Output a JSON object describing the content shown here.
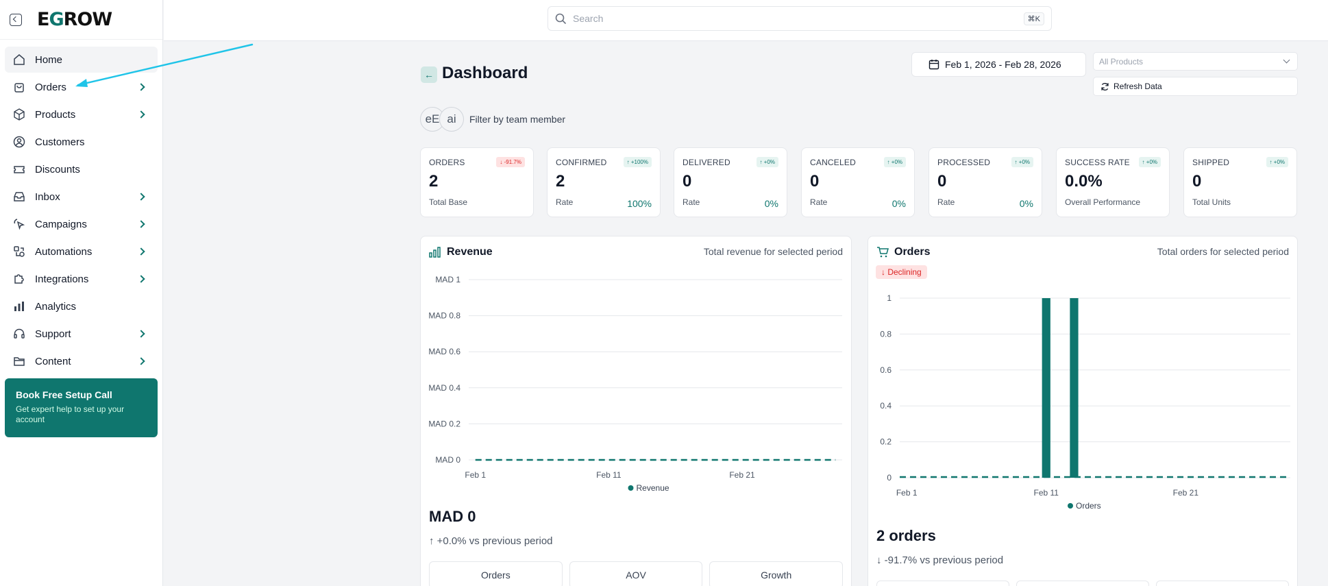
{
  "sidebar": {
    "logo_prefix": "E",
    "logo_accent": "G",
    "logo_suffix": "ROW",
    "items": [
      {
        "label": "Home",
        "icon": "home-icon",
        "chevron": false
      },
      {
        "label": "Orders",
        "icon": "bag-icon",
        "chevron": true
      },
      {
        "label": "Products",
        "icon": "box-icon",
        "chevron": true
      },
      {
        "label": "Customers",
        "icon": "user-circle-icon",
        "chevron": false
      },
      {
        "label": "Discounts",
        "icon": "ticket-icon",
        "chevron": false
      },
      {
        "label": "Inbox",
        "icon": "inbox-icon",
        "chevron": true
      },
      {
        "label": "Campaigns",
        "icon": "pointer-icon",
        "chevron": true
      },
      {
        "label": "Automations",
        "icon": "automation-icon",
        "chevron": true
      },
      {
        "label": "Integrations",
        "icon": "puzzle-icon",
        "chevron": true
      },
      {
        "label": "Analytics",
        "icon": "bar-chart-icon",
        "chevron": false
      },
      {
        "label": "Support",
        "icon": "headset-icon",
        "chevron": true
      },
      {
        "label": "Content",
        "icon": "folder-icon",
        "chevron": true
      }
    ],
    "promo": {
      "title": "Book Free Setup Call",
      "text": "Get expert help to set up your account"
    }
  },
  "search": {
    "placeholder": "Search",
    "shortcut": "⌘K"
  },
  "page": {
    "title": "Dashboard",
    "date_range": "Feb 1, 2026 - Feb 28, 2026",
    "product_filter": "All Products",
    "refresh_label": "Refresh Data",
    "avatars": [
      "eE",
      "ai"
    ],
    "filter_label": "Filter by team member"
  },
  "stats": [
    {
      "name": "ORDERS",
      "badge": "-91.7%",
      "direction": "down",
      "value": "2",
      "sub": "Total Base",
      "pct": ""
    },
    {
      "name": "CONFIRMED",
      "badge": "+100%",
      "direction": "up",
      "value": "2",
      "sub": "Rate",
      "pct": "100%"
    },
    {
      "name": "DELIVERED",
      "badge": "+0%",
      "direction": "up",
      "value": "0",
      "sub": "Rate",
      "pct": "0%"
    },
    {
      "name": "CANCELED",
      "badge": "+0%",
      "direction": "up",
      "value": "0",
      "sub": "Rate",
      "pct": "0%"
    },
    {
      "name": "PROCESSED",
      "badge": "+0%",
      "direction": "up",
      "value": "0",
      "sub": "Rate",
      "pct": "0%"
    },
    {
      "name": "SUCCESS RATE",
      "badge": "+0%",
      "direction": "up",
      "value": "0.0%",
      "sub": "Overall Performance",
      "pct": ""
    },
    {
      "name": "SHIPPED",
      "badge": "+0%",
      "direction": "up",
      "value": "0",
      "sub": "Total Units",
      "pct": ""
    }
  ],
  "revenue": {
    "title": "Revenue",
    "description": "Total revenue for selected period",
    "total": "MAD 0",
    "comparison": "↑ +0.0% vs previous period",
    "tiles": [
      "Orders",
      "AOV",
      "Growth"
    ]
  },
  "orders": {
    "title": "Orders",
    "description": "Total orders for selected period",
    "trend": "Declining",
    "total": "2 orders",
    "comparison": "↓ -91.7% vs previous period"
  },
  "colors": {
    "accent": "#0f766e",
    "negative": "#dc2626",
    "annotation": "#1fc4e8"
  },
  "chart_data": [
    {
      "type": "line",
      "title": "Revenue",
      "series": [
        {
          "name": "Revenue",
          "values": [
            0,
            0,
            0,
            0,
            0,
            0,
            0,
            0,
            0,
            0,
            0,
            0,
            0,
            0,
            0,
            0,
            0,
            0,
            0,
            0,
            0,
            0,
            0,
            0,
            0,
            0,
            0,
            0
          ]
        }
      ],
      "x": [
        "Feb 1",
        "Feb 2",
        "Feb 3",
        "Feb 4",
        "Feb 5",
        "Feb 6",
        "Feb 7",
        "Feb 8",
        "Feb 9",
        "Feb 10",
        "Feb 11",
        "Feb 12",
        "Feb 13",
        "Feb 14",
        "Feb 15",
        "Feb 16",
        "Feb 17",
        "Feb 18",
        "Feb 19",
        "Feb 20",
        "Feb 21",
        "Feb 22",
        "Feb 23",
        "Feb 24",
        "Feb 25",
        "Feb 26",
        "Feb 27",
        "Feb 28"
      ],
      "x_ticks": [
        "Feb 1",
        "Feb 11",
        "Feb 21"
      ],
      "y_ticks": [
        "MAD 0",
        "MAD 0.2",
        "MAD 0.4",
        "MAD 0.6",
        "MAD 0.8",
        "MAD 1"
      ],
      "ylim": [
        0,
        1
      ],
      "line_style": "dashed",
      "grid": true,
      "legend": "bottom"
    },
    {
      "type": "bar",
      "title": "Orders",
      "series": [
        {
          "name": "Orders",
          "values": [
            0,
            0,
            0,
            0,
            0,
            0,
            0,
            0,
            0,
            0,
            1,
            0,
            1,
            0,
            0,
            0,
            0,
            0,
            0,
            0,
            0,
            0,
            0,
            0,
            0,
            0,
            0,
            0
          ]
        }
      ],
      "x": [
        "Feb 1",
        "Feb 2",
        "Feb 3",
        "Feb 4",
        "Feb 5",
        "Feb 6",
        "Feb 7",
        "Feb 8",
        "Feb 9",
        "Feb 10",
        "Feb 11",
        "Feb 12",
        "Feb 13",
        "Feb 14",
        "Feb 15",
        "Feb 16",
        "Feb 17",
        "Feb 18",
        "Feb 19",
        "Feb 20",
        "Feb 21",
        "Feb 22",
        "Feb 23",
        "Feb 24",
        "Feb 25",
        "Feb 26",
        "Feb 27",
        "Feb 28"
      ],
      "x_ticks": [
        "Feb 1",
        "Feb 11",
        "Feb 21"
      ],
      "y_ticks": [
        "0",
        "0.2",
        "0.4",
        "0.6",
        "0.8",
        "1"
      ],
      "ylim": [
        0,
        1
      ],
      "grid": true,
      "legend": "bottom"
    }
  ]
}
